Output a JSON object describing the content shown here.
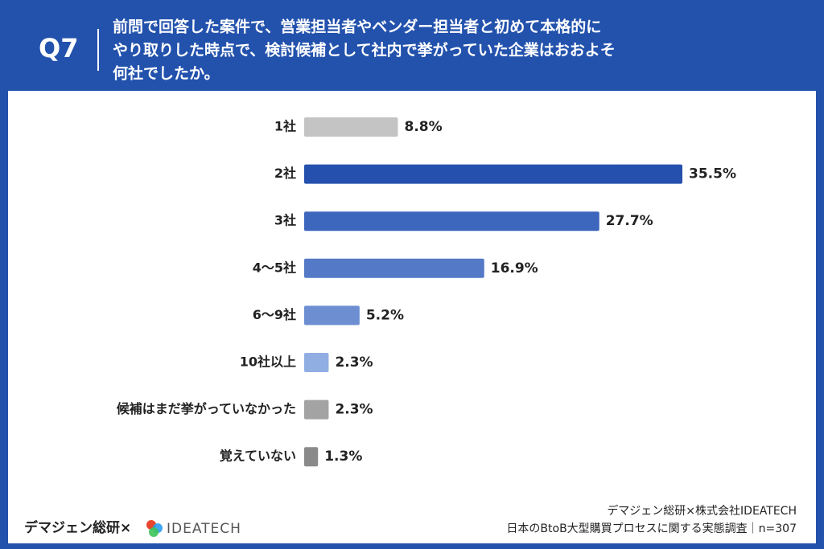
{
  "header": {
    "label": "Q7",
    "question": [
      "前問で回答した案件で、営業担当者やベンダー担当者と初めて本格的に",
      "やり取りした時点で、検討候補として社内で挙がっていた企業はおおよそ",
      "何社でしたか。"
    ]
  },
  "chart_data": {
    "type": "bar",
    "orientation": "horizontal",
    "categories": [
      "1社",
      "2社",
      "3社",
      "4〜5社",
      "6〜9社",
      "10社以上",
      "候補はまだ挙がっていなかった",
      "覚えていない"
    ],
    "values": [
      8.8,
      35.5,
      27.7,
      16.9,
      5.2,
      2.3,
      2.3,
      1.3
    ],
    "value_labels": [
      "8.8%",
      "35.5%",
      "27.7%",
      "16.9%",
      "5.2%",
      "2.3%",
      "2.3%",
      "1.3%"
    ],
    "colors": [
      "#c4c4c4",
      "#2550ad",
      "#3d66bd",
      "#5479c6",
      "#6d8fd2",
      "#91aee3",
      "#a3a3a3",
      "#8a8a8a"
    ]
  },
  "footer": {
    "brand": "デマジェン総研×",
    "logo": "IDEATECH",
    "source": [
      "デマジェン総研×株式会社IDEATECH",
      "日本のBtoB大型購買プロセスに関する実態調査｜n=307"
    ]
  }
}
